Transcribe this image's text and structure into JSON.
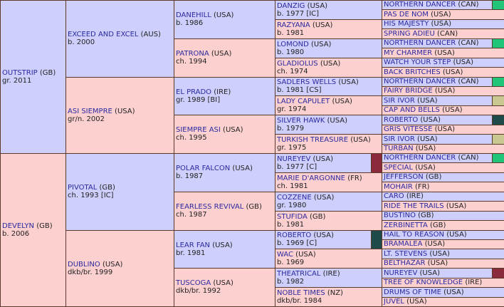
{
  "horses": [
    {
      "id": "g1_0",
      "name": "OUTSTRIP",
      "country": "(GB)",
      "info": "gr. 2011"
    },
    {
      "id": "g1_1",
      "name": "DEVELYN",
      "country": "(GB)",
      "info": "b. 2006"
    },
    {
      "id": "g2_0",
      "name": "EXCEED AND EXCEL",
      "country": "(AUS)",
      "info": "b. 2000"
    },
    {
      "id": "g2_1",
      "name": "ASI SIEMPRE",
      "country": "(USA)",
      "info": "gr/n. 2002"
    },
    {
      "id": "g2_2",
      "name": "PIVOTAL",
      "country": "(GB)",
      "info": "ch. 1993 [IC]"
    },
    {
      "id": "g2_3",
      "name": "DUBLINO",
      "country": "(USA)",
      "info": "dkb/br. 1999"
    },
    {
      "id": "g3_0",
      "name": "DANEHILL",
      "country": "(USA)",
      "info": "b. 1986"
    },
    {
      "id": "g3_1",
      "name": "PATRONA",
      "country": "(USA)",
      "info": "ch. 1994"
    },
    {
      "id": "g3_2",
      "name": "EL PRADO",
      "country": "(IRE)",
      "info": "gr. 1989 [BI]"
    },
    {
      "id": "g3_3",
      "name": "SIEMPRE ASI",
      "country": "(USA)",
      "info": "ch. 1995"
    },
    {
      "id": "g3_4",
      "name": "POLAR FALCON",
      "country": "(USA)",
      "info": "b. 1987"
    },
    {
      "id": "g3_5",
      "name": "FEARLESS REVIVAL",
      "country": "(GB)",
      "info": "ch. 1987"
    },
    {
      "id": "g3_6",
      "name": "LEAR FAN",
      "country": "(USA)",
      "info": "br. 1981"
    },
    {
      "id": "g3_7",
      "name": "TUSCOGA",
      "country": "(USA)",
      "info": "dkb/br. 1992"
    },
    {
      "id": "g4_0",
      "name": "DANZIG",
      "country": "(USA)",
      "info": "b. 1977 [IC]"
    },
    {
      "id": "g4_1",
      "name": "RAZYANA",
      "country": "(USA)",
      "info": "b. 1981"
    },
    {
      "id": "g4_2",
      "name": "LOMOND",
      "country": "(USA)",
      "info": "b. 1980"
    },
    {
      "id": "g4_3",
      "name": "GLADIOLUS",
      "country": "(USA)",
      "info": "ch. 1974"
    },
    {
      "id": "g4_4",
      "name": "SADLERS WELLS",
      "country": "(USA)",
      "info": "b. 1981 [CS]"
    },
    {
      "id": "g4_5",
      "name": "LADY CAPULET",
      "country": "(USA)",
      "info": "gr. 1974"
    },
    {
      "id": "g4_6",
      "name": "SILVER HAWK",
      "country": "(USA)",
      "info": "b. 1979"
    },
    {
      "id": "g4_7",
      "name": "TURKISH TREASURE",
      "country": "(USA)",
      "info": "gr. 1975"
    },
    {
      "id": "g4_8",
      "name": "NUREYEV",
      "country": "(USA)",
      "info": "b. 1977 [C]"
    },
    {
      "id": "g4_9",
      "name": "MARIE D'ARGONNE",
      "country": "(FR)",
      "info": "ch. 1981"
    },
    {
      "id": "g4_10",
      "name": "COZZENE",
      "country": "(USA)",
      "info": "gr. 1980"
    },
    {
      "id": "g4_11",
      "name": "STUFIDA",
      "country": "(GB)",
      "info": "b. 1981"
    },
    {
      "id": "g4_12",
      "name": "ROBERTO",
      "country": "(USA)",
      "info": "b. 1969 [C]"
    },
    {
      "id": "g4_13",
      "name": "WAC",
      "country": "(USA)",
      "info": "b. 1969"
    },
    {
      "id": "g4_14",
      "name": "THEATRICAL",
      "country": "(IRE)",
      "info": "b. 1982"
    },
    {
      "id": "g4_15",
      "name": "NOBLE TIMES",
      "country": "(NZ)",
      "info": "dkb/br. 1984"
    },
    {
      "id": "g5_0",
      "name": "NORTHERN DANCER",
      "country": "(CAN)",
      "info": ""
    },
    {
      "id": "g5_1",
      "name": "PAS DE NOM",
      "country": "(USA)",
      "info": ""
    },
    {
      "id": "g5_2",
      "name": "HIS MAJESTY",
      "country": "(USA)",
      "info": ""
    },
    {
      "id": "g5_3",
      "name": "SPRING ADIEU",
      "country": "(CAN)",
      "info": ""
    },
    {
      "id": "g5_4",
      "name": "NORTHERN DANCER",
      "country": "(CAN)",
      "info": ""
    },
    {
      "id": "g5_5",
      "name": "MY CHARMER",
      "country": "(USA)",
      "info": ""
    },
    {
      "id": "g5_6",
      "name": "WATCH YOUR STEP",
      "country": "(USA)",
      "info": ""
    },
    {
      "id": "g5_7",
      "name": "BACK BRITCHES",
      "country": "(USA)",
      "info": ""
    },
    {
      "id": "g5_8",
      "name": "NORTHERN DANCER",
      "country": "(CAN)",
      "info": ""
    },
    {
      "id": "g5_9",
      "name": "FAIRY BRIDGE",
      "country": "(USA)",
      "info": ""
    },
    {
      "id": "g5_10",
      "name": "SIR IVOR",
      "country": "(USA)",
      "info": ""
    },
    {
      "id": "g5_11",
      "name": "CAP AND BELLS",
      "country": "(USA)",
      "info": ""
    },
    {
      "id": "g5_12",
      "name": "ROBERTO",
      "country": "(USA)",
      "info": ""
    },
    {
      "id": "g5_13",
      "name": "GRIS VITESSE",
      "country": "(USA)",
      "info": ""
    },
    {
      "id": "g5_14",
      "name": "SIR IVOR",
      "country": "(USA)",
      "info": ""
    },
    {
      "id": "g5_15",
      "name": "TURBAN",
      "country": "(USA)",
      "info": ""
    },
    {
      "id": "g5_16",
      "name": "NORTHERN DANCER",
      "country": "(CAN)",
      "info": ""
    },
    {
      "id": "g5_17",
      "name": "SPECIAL",
      "country": "(USA)",
      "info": ""
    },
    {
      "id": "g5_18",
      "name": "JEFFERSON",
      "country": "(GB)",
      "info": ""
    },
    {
      "id": "g5_19",
      "name": "MOHAIR",
      "country": "(FR)",
      "info": ""
    },
    {
      "id": "g5_20",
      "name": "CARO",
      "country": "(IRE)",
      "info": ""
    },
    {
      "id": "g5_21",
      "name": "RIDE THE TRAILS",
      "country": "(USA)",
      "info": ""
    },
    {
      "id": "g5_22",
      "name": "BUSTINO",
      "country": "(GB)",
      "info": ""
    },
    {
      "id": "g5_23",
      "name": "ZERBINETTA",
      "country": "(GB)",
      "info": ""
    },
    {
      "id": "g5_24",
      "name": "HAIL TO REASON",
      "country": "(USA)",
      "info": ""
    },
    {
      "id": "g5_25",
      "name": "BRAMALEA",
      "country": "(USA)",
      "info": ""
    },
    {
      "id": "g5_26",
      "name": "LT. STEVENS",
      "country": "(USA)",
      "info": ""
    },
    {
      "id": "g5_27",
      "name": "BELTHAZAR",
      "country": "(USA)",
      "info": ""
    },
    {
      "id": "g5_28",
      "name": "NUREYEV",
      "country": "(USA)",
      "info": ""
    },
    {
      "id": "g5_29",
      "name": "TREE OF KNOWLEDGE",
      "country": "(IRE)",
      "info": ""
    },
    {
      "id": "g5_30",
      "name": "DRUMS OF TIME",
      "country": "(USA)",
      "info": ""
    },
    {
      "id": "g5_31",
      "name": "JUVEL",
      "country": "(USA)",
      "info": ""
    }
  ],
  "flag_colors": {
    "green": "#22c47a",
    "olive": "#c8c890",
    "darkteal": "#1f4a4a",
    "maroon": "#8b2a3a"
  },
  "flags": {
    "g5_0": "green",
    "g5_4": "green",
    "g5_8": "green",
    "g5_16": "green",
    "g5_10": "olive",
    "g5_14": "olive",
    "g5_12": "darkteal",
    "g4_12": "darkteal",
    "g4_8": "maroon",
    "g5_28": "maroon"
  }
}
